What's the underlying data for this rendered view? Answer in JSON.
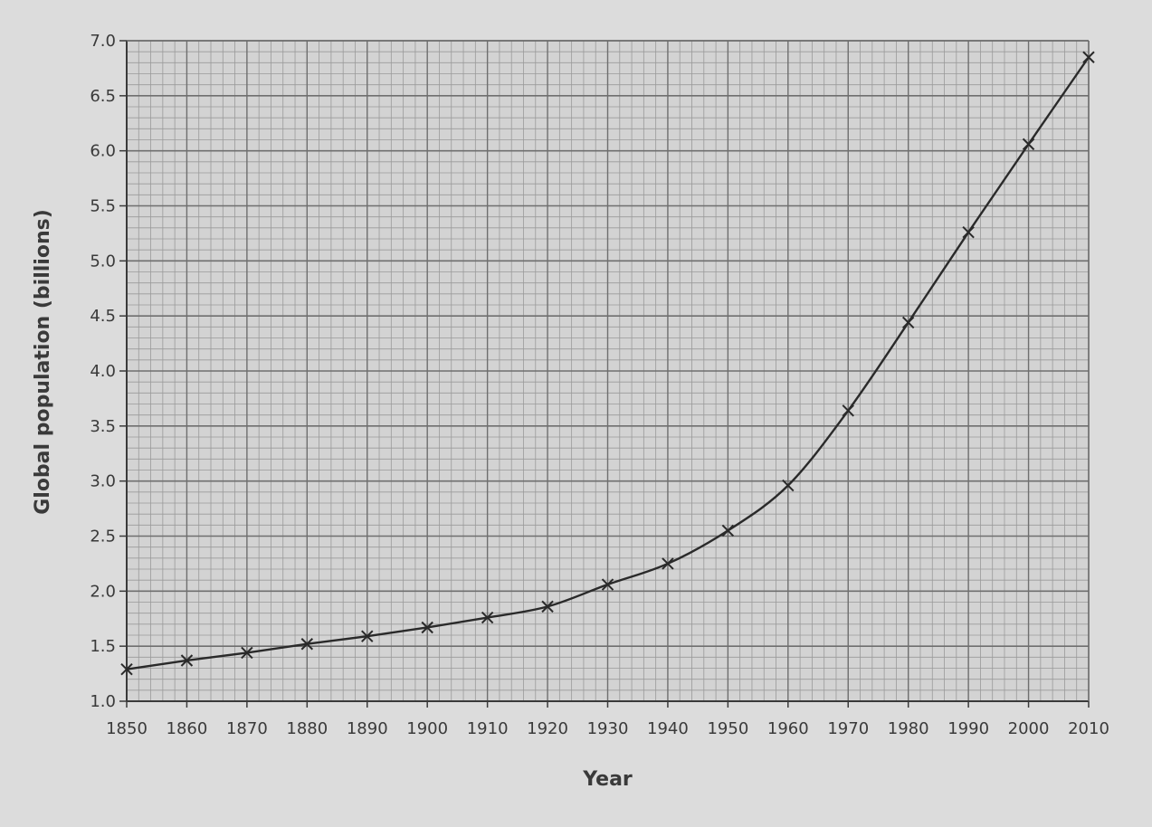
{
  "chart_data": {
    "type": "line",
    "title": "",
    "xlabel": "Year",
    "ylabel": "Global population (billions)",
    "xlim": [
      1850,
      2010
    ],
    "ylim": [
      1.0,
      7.0
    ],
    "x_ticks": [
      "1850",
      "1860",
      "1870",
      "1880",
      "1890",
      "1900",
      "1910",
      "1920",
      "1930",
      "1940",
      "1950",
      "1960",
      "1970",
      "1980",
      "1990",
      "2000",
      "2010"
    ],
    "y_ticks": [
      "1.0",
      "1.5",
      "2.0",
      "2.5",
      "3.0",
      "3.5",
      "4.0",
      "4.5",
      "5.0",
      "5.5",
      "6.0",
      "6.5",
      "7.0"
    ],
    "grid": true,
    "marker": "x",
    "series": [
      {
        "x": [
          1850,
          1860,
          1870,
          1880,
          1890,
          1900,
          1910,
          1920,
          1930,
          1940,
          1950,
          1960,
          1970,
          1980,
          1990,
          2000,
          2010
        ],
        "values": [
          1.29,
          1.37,
          1.44,
          1.52,
          1.59,
          1.67,
          1.76,
          1.86,
          2.06,
          2.25,
          2.55,
          2.96,
          3.64,
          4.44,
          5.26,
          6.06,
          6.85
        ]
      }
    ],
    "colors": {
      "line": "#2a2a2a",
      "grid_major": "#6f6f6f",
      "grid_minor": "#9a9a9a",
      "plot_bg": "#d3d3d3",
      "page_bg": "#dcdcdc"
    }
  }
}
